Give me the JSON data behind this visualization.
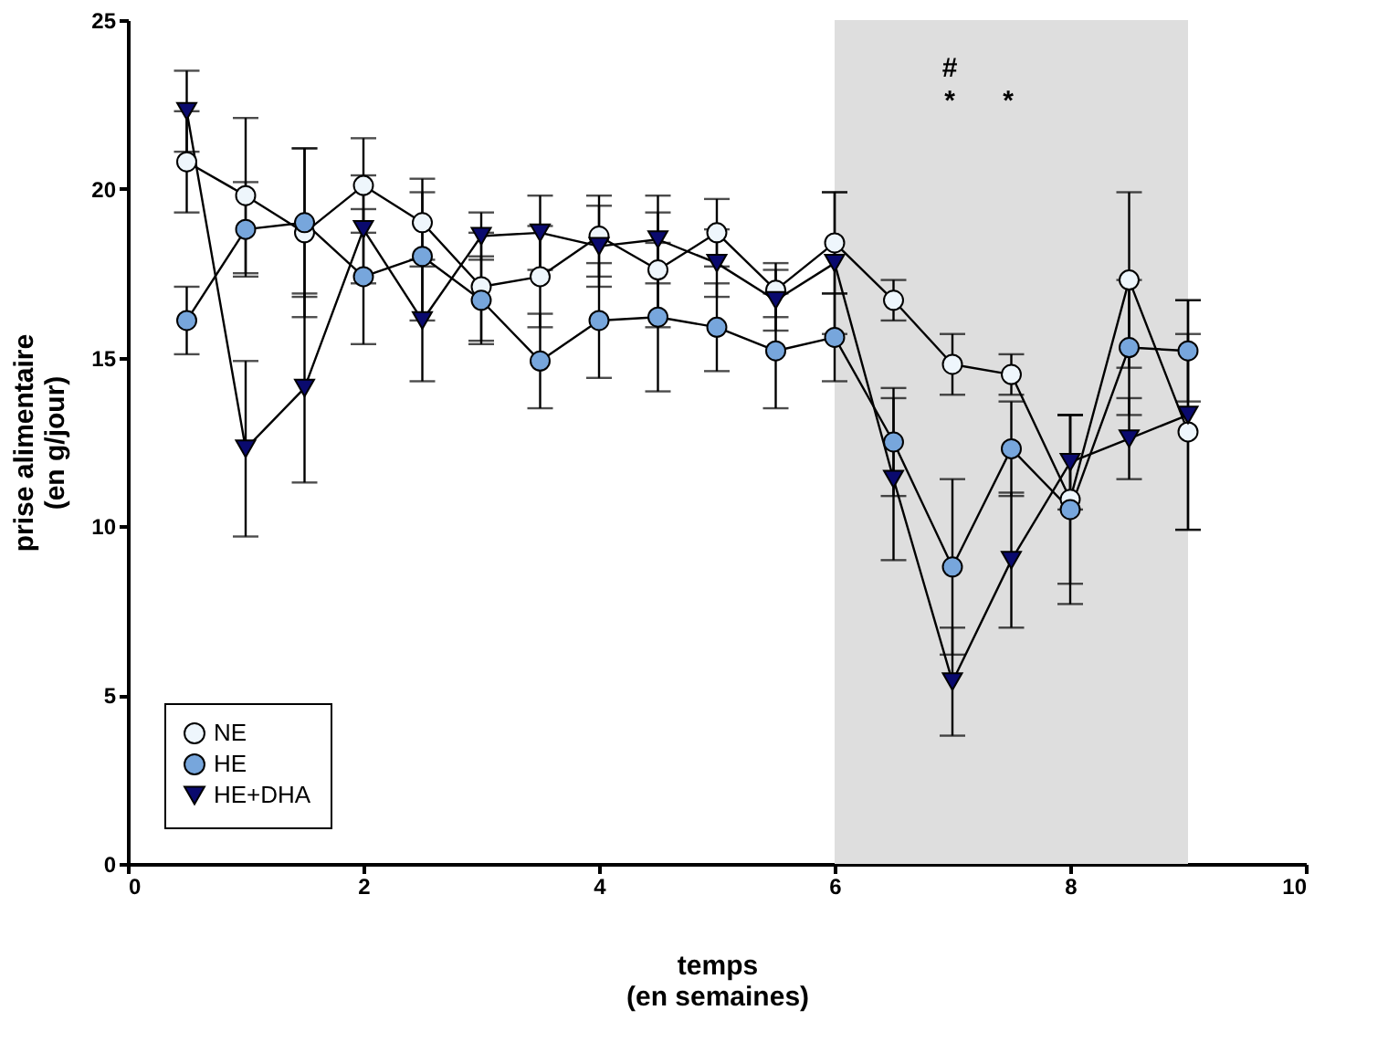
{
  "chart_data": {
    "type": "line",
    "xlabel": "temps\n(en semaines)",
    "ylabel": "prise alimentaire\n(en g/jour)",
    "x": [
      0.5,
      1,
      1.5,
      2,
      2.5,
      3,
      3.5,
      4,
      4.5,
      5,
      5.5,
      6,
      6.5,
      7,
      7.5,
      8,
      8.5,
      9
    ],
    "series": [
      {
        "name": "NE",
        "color": "#eef6fc",
        "marker": "circle",
        "values": [
          20.8,
          19.8,
          18.7,
          20.1,
          19.0,
          17.1,
          17.4,
          18.6,
          17.6,
          18.7,
          17.0,
          18.4,
          16.7,
          14.8,
          14.5,
          10.8,
          17.3,
          12.8
        ],
        "errors": [
          1.5,
          2.3,
          2.5,
          1.4,
          1.3,
          1.6,
          1.5,
          1.2,
          1.7,
          1.0,
          0.8,
          1.5,
          0.6,
          0.9,
          0.6,
          2.5,
          2.6,
          2.9
        ]
      },
      {
        "name": "HE",
        "color": "#77a6dc",
        "marker": "circle",
        "values": [
          16.1,
          18.8,
          19.0,
          17.4,
          18.0,
          16.7,
          14.9,
          16.1,
          16.2,
          15.9,
          15.2,
          15.6,
          12.5,
          8.8,
          12.3,
          10.5,
          15.3,
          15.2
        ],
        "errors": [
          1.0,
          1.4,
          2.2,
          2.0,
          1.9,
          1.3,
          1.4,
          1.7,
          2.2,
          1.3,
          1.7,
          1.3,
          1.6,
          2.6,
          1.4,
          2.8,
          2.0,
          1.5
        ]
      },
      {
        "name": "HE+DHA",
        "color": "#0a0a6e",
        "marker": "triangle",
        "values": [
          22.3,
          12.3,
          14.1,
          18.8,
          16.1,
          18.6,
          18.7,
          18.3,
          18.5,
          17.8,
          16.7,
          17.8,
          11.4,
          5.4,
          9.0,
          11.9,
          12.6,
          13.3
        ],
        "errors": [
          1.2,
          2.6,
          2.8,
          1.6,
          1.8,
          0.7,
          1.1,
          1.2,
          1.3,
          1.0,
          0.9,
          2.1,
          2.4,
          1.6,
          2.0,
          1.4,
          1.2,
          3.4
        ]
      }
    ],
    "bands": [
      {
        "axis": "x",
        "from": 6,
        "to": 9,
        "color": "#dedede"
      }
    ],
    "annotations": [
      "#",
      "*",
      "*"
    ],
    "xlim": [
      0,
      10
    ],
    "xticks": [
      0,
      2,
      4,
      6,
      8,
      10
    ],
    "ylim": [
      0,
      25
    ],
    "yticks": [
      0,
      5,
      10,
      15,
      20,
      25
    ],
    "grid": false,
    "legend": "bottom left",
    "line_style": "solid"
  }
}
